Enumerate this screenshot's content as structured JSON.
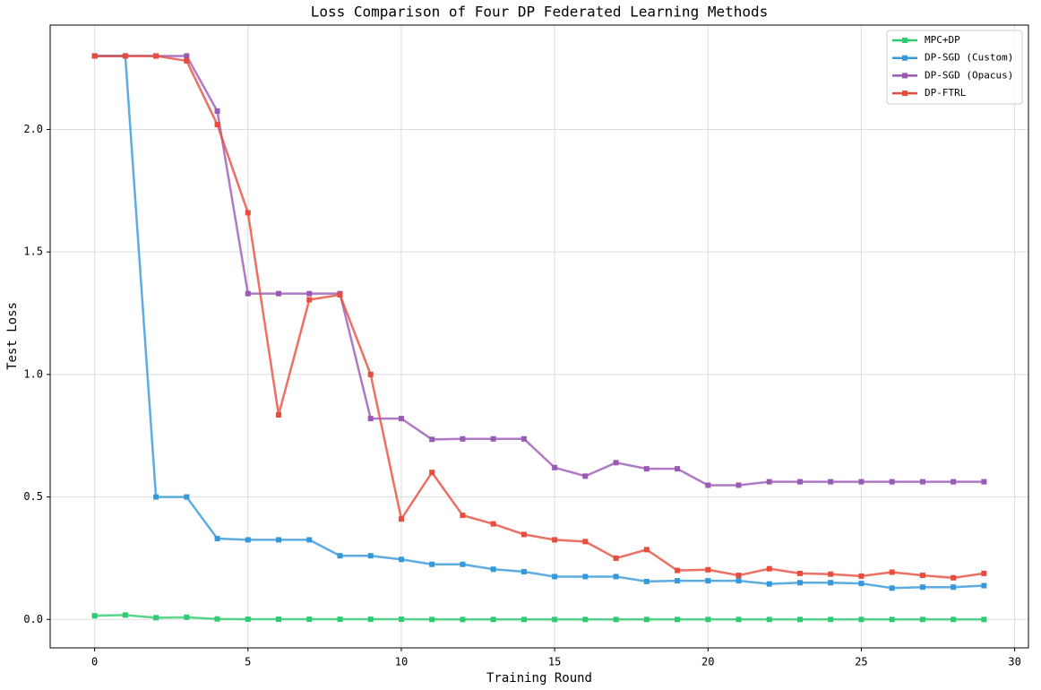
{
  "chart_data": {
    "type": "line",
    "title": "Loss Comparison of Four DP Federated Learning Methods",
    "x_label": "Training Round",
    "y_label": "Test Loss",
    "x": [
      0,
      1,
      2,
      3,
      4,
      5,
      6,
      7,
      8,
      9,
      10,
      11,
      12,
      13,
      14,
      15,
      16,
      17,
      18,
      19,
      20,
      21,
      22,
      23,
      24,
      25,
      26,
      27,
      28,
      29
    ],
    "series": [
      {
        "name": "MPC+DP",
        "color": "#2ecc71",
        "values": [
          0.015,
          0.018,
          0.007,
          0.009,
          0.002,
          0.001,
          0.001,
          0.001,
          0.001,
          0.001,
          0.001,
          0,
          0,
          0,
          0,
          0,
          0,
          0,
          0,
          0,
          0,
          0,
          0,
          0,
          0,
          0,
          0,
          0,
          0,
          0
        ]
      },
      {
        "name": "DP-SGD (Custom)",
        "color": "#3498db",
        "values": [
          2.3,
          2.3,
          0.5,
          0.5,
          0.33,
          0.325,
          0.325,
          0.325,
          0.26,
          0.26,
          0.245,
          0.225,
          0.225,
          0.205,
          0.195,
          0.175,
          0.175,
          0.175,
          0.155,
          0.158,
          0.158,
          0.158,
          0.145,
          0.15,
          0.15,
          0.147,
          0.128,
          0.132,
          0.132,
          0.138
        ]
      },
      {
        "name": "DP-SGD (Opacus)",
        "color": "#9b59b6",
        "values": [
          2.3,
          2.3,
          2.3,
          2.3,
          2.075,
          1.33,
          1.33,
          1.33,
          1.33,
          0.82,
          0.82,
          0.735,
          0.737,
          0.737,
          0.737,
          0.62,
          0.585,
          0.64,
          0.615,
          0.615,
          0.548,
          0.548,
          0.562,
          0.562,
          0.562,
          0.562,
          0.562,
          0.562,
          0.562,
          0.562
        ]
      },
      {
        "name": "DP-FTRL",
        "color": "#e74c3c",
        "values": [
          2.3,
          2.3,
          2.3,
          2.28,
          2.02,
          1.66,
          0.835,
          1.305,
          1.325,
          1.0,
          0.41,
          0.6,
          0.425,
          0.39,
          0.347,
          0.325,
          0.318,
          0.25,
          0.285,
          0.2,
          0.203,
          0.18,
          0.207,
          0.188,
          0.185,
          0.177,
          0.193,
          0.18,
          0.17,
          0.188
        ]
      }
    ],
    "xlim": [
      -1.45,
      30.45
    ],
    "ylim": [
      -0.116,
      2.426
    ],
    "xticks": [
      0,
      5,
      10,
      15,
      20,
      25,
      30
    ],
    "yticks": [
      {
        "value": 0,
        "label": "0.0"
      },
      0.5,
      {
        "value": 1,
        "label": "1.0"
      },
      1.5,
      {
        "value": 2,
        "label": "2.0"
      }
    ],
    "grid": true,
    "legend": "upper right"
  }
}
